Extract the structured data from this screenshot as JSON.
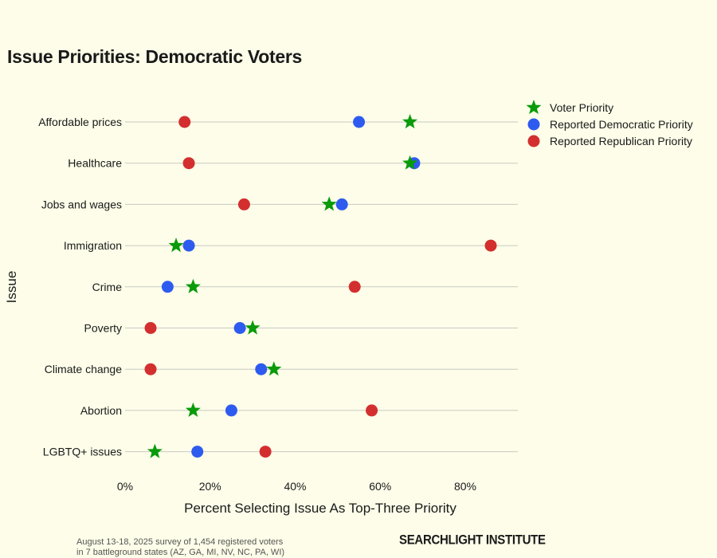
{
  "title": "Issue Priorities: Democratic Voters",
  "footnote": {
    "line1": "August 13-18, 2025 survey of 1,454 registered voters",
    "line2": "in 7 battleground states (AZ, GA, MI, NV, NC, PA, WI)"
  },
  "brand": "SEARCHLIGHT INSTITUTE",
  "chart_data": {
    "type": "scatter",
    "title": "Issue Priorities: Democratic Voters",
    "xlabel": "Percent Selecting Issue As Top-Three Priority",
    "ylabel": "Issue",
    "xlim": [
      0,
      92
    ],
    "x_ticks": [
      "0%",
      "20%",
      "40%",
      "60%",
      "80%"
    ],
    "x_tick_values": [
      0,
      20,
      40,
      60,
      80
    ],
    "grid": "horizontal",
    "legend_position": "top-right",
    "categories": [
      "Affordable prices",
      "Healthcare",
      "Jobs and wages",
      "Immigration",
      "Crime",
      "Poverty",
      "Climate change",
      "Abortion",
      "LGBTQ+ issues"
    ],
    "series": [
      {
        "name": "Reported Republican Priority",
        "color": "#d32f2f",
        "marker": "circle",
        "values": [
          14,
          15,
          28,
          86,
          54,
          6,
          6,
          58,
          33
        ]
      },
      {
        "name": "Reported Democratic Priority",
        "color": "#2e5bef",
        "marker": "circle",
        "values": [
          55,
          68,
          51,
          15,
          10,
          27,
          32,
          25,
          17
        ]
      },
      {
        "name": "Voter Priority",
        "color": "#0a9b0a",
        "marker": "star",
        "values": [
          67,
          67,
          48,
          12,
          16,
          30,
          35,
          16,
          7
        ]
      }
    ],
    "legend_order": [
      "Voter Priority",
      "Reported Democratic Priority",
      "Reported Republican Priority"
    ]
  }
}
